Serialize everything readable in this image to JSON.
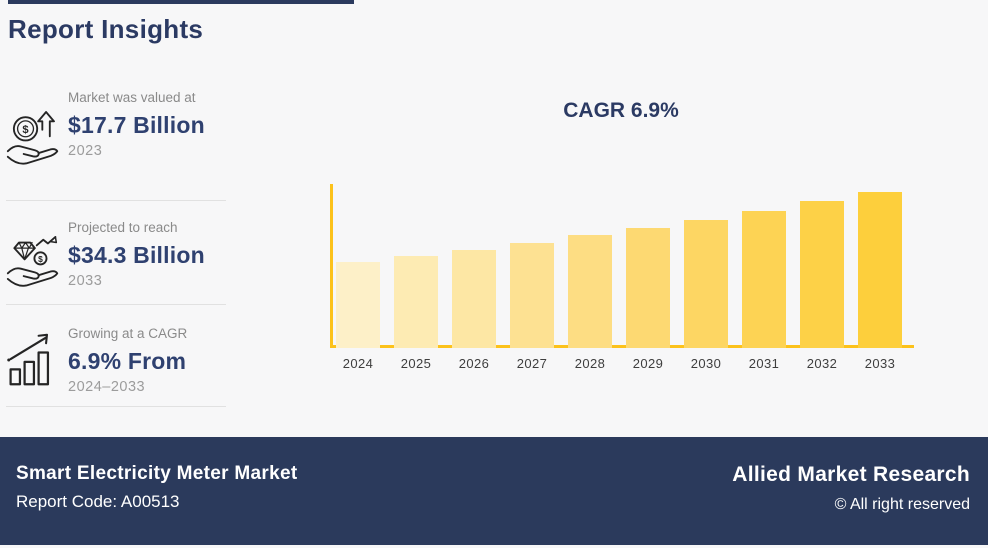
{
  "page": {
    "title": "Report Insights"
  },
  "colors": {
    "navy": "#2B3A5E",
    "axis_gold": "#FCC21B",
    "background": "#F7F7F8",
    "footer_background": "#2B3A5C",
    "label_gray": "#8A8A8A"
  },
  "sidebar": {
    "items": [
      {
        "icon": "hand-coin-growth-icon",
        "label": "Market was valued at",
        "value": "$17.7 Billion",
        "year": "2023"
      },
      {
        "icon": "hand-diamond-coin-icon",
        "label": "Projected to reach",
        "value": "$34.3 Billion",
        "year": "2033"
      },
      {
        "icon": "growth-bars-arrow-icon",
        "label": "Growing at a CAGR",
        "value": "6.9% From",
        "year": "2024–2033"
      }
    ]
  },
  "chart_data": {
    "type": "bar",
    "title": "CAGR 6.9%",
    "categories": [
      "2024",
      "2025",
      "2026",
      "2027",
      "2028",
      "2029",
      "2030",
      "2031",
      "2032",
      "2033"
    ],
    "values": [
      18.9,
      20.2,
      21.6,
      23.1,
      24.7,
      26.4,
      28.2,
      30.1,
      32.2,
      34.3
    ],
    "value_note": "USD Billion, estimated from $17.7B (2023) growing at 6.9% CAGR to $34.3B (2033); bars are unlabeled in image",
    "bar_colors": [
      "#FDF0C8",
      "#FDEBB3",
      "#FDE7A4",
      "#FDE192",
      "#FDDD83",
      "#FDD972",
      "#FDD663",
      "#FDD354",
      "#FDD147",
      "#FDCF3C"
    ],
    "xlabel": "",
    "ylabel": "",
    "ylim": [
      0,
      36
    ],
    "grid": false,
    "legend": false,
    "axis_color": "#FCC21B"
  },
  "footer": {
    "market_title": "Smart Electricity Meter Market",
    "report_code": "Report Code: A00513",
    "brand": "Allied Market Research",
    "copyright": "© All right reserved"
  }
}
